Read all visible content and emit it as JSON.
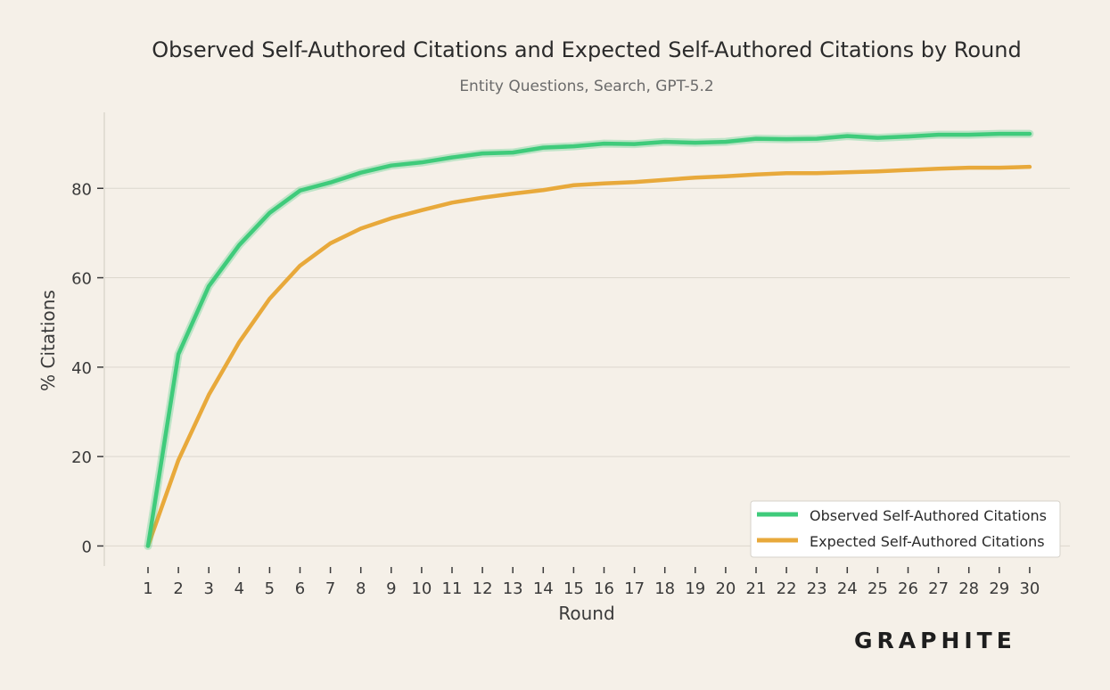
{
  "chart_data": {
    "type": "line",
    "title": "Observed Self-Authored Citations and Expected Self-Authored Citations by Round",
    "subtitle": "Entity Questions, Search, GPT-5.2",
    "xlabel": "Round",
    "ylabel": "% Citations",
    "x": [
      1,
      2,
      3,
      4,
      5,
      6,
      7,
      8,
      9,
      10,
      11,
      12,
      13,
      14,
      15,
      16,
      17,
      18,
      19,
      20,
      21,
      22,
      23,
      24,
      25,
      26,
      27,
      28,
      29,
      30
    ],
    "x_tick_labels": [
      "1",
      "2",
      "3",
      "4",
      "5",
      "6",
      "7",
      "8",
      "9",
      "10",
      "11",
      "12",
      "13",
      "14",
      "15",
      "16",
      "17",
      "18",
      "19",
      "20",
      "21",
      "22",
      "23",
      "24",
      "25",
      "26",
      "27",
      "28",
      "29",
      "30"
    ],
    "y_ticks": [
      0,
      20,
      40,
      60,
      80
    ],
    "y_tick_labels": [
      "0",
      "20",
      "40",
      "60",
      "80"
    ],
    "ylim": [
      -4.5,
      97
    ],
    "grid": "horizontal",
    "legend_position": "bottom-right",
    "series": [
      {
        "name": "Observed Self-Authored Citations",
        "color": "#3fcb7b",
        "values": [
          0,
          42.9,
          58.1,
          67.3,
          74.5,
          79.5,
          81.3,
          83.5,
          85.1,
          85.8,
          86.9,
          87.8,
          88.0,
          89.1,
          89.4,
          90.0,
          89.9,
          90.4,
          90.2,
          90.4,
          91.1,
          91.0,
          91.1,
          91.7,
          91.3,
          91.6,
          92.0,
          92.0,
          92.2,
          92.2
        ]
      },
      {
        "name": "Expected Self-Authored Citations",
        "color": "#e8a93b",
        "values": [
          0,
          19.2,
          33.8,
          45.6,
          55.3,
          62.7,
          67.7,
          71.0,
          73.3,
          75.1,
          76.8,
          77.9,
          78.8,
          79.6,
          80.7,
          81.1,
          81.4,
          81.9,
          82.4,
          82.7,
          83.1,
          83.4,
          83.4,
          83.6,
          83.8,
          84.1,
          84.4,
          84.6,
          84.6,
          84.8
        ]
      }
    ]
  },
  "branding": {
    "logo_text": "GRAPHITE"
  }
}
